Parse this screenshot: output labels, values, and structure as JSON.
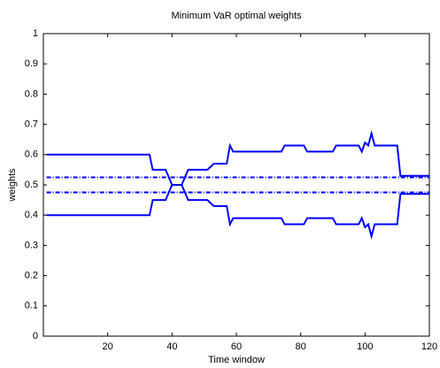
{
  "chart_data": {
    "type": "line",
    "title": "Minimum VaR optimal weights",
    "xlabel": "Time window",
    "ylabel": "weights",
    "xlim": [
      0,
      120
    ],
    "xticks": [
      20,
      40,
      60,
      80,
      100,
      120
    ],
    "ylim": [
      0,
      1
    ],
    "yticks": [
      0,
      0.1,
      0.2,
      0.3,
      0.4,
      0.5,
      0.6,
      0.7,
      0.8,
      0.9,
      1
    ],
    "series": [
      {
        "color": "#0000ff",
        "linestyle": "solid",
        "x": [
          1,
          33,
          34,
          38,
          40,
          43,
          45,
          51,
          53,
          57,
          58,
          59,
          74,
          75,
          81,
          82,
          90,
          91,
          98,
          99,
          100,
          101,
          102,
          103,
          110,
          111,
          120
        ],
        "values": [
          0.6,
          0.6,
          0.55,
          0.55,
          0.5,
          0.5,
          0.55,
          0.55,
          0.57,
          0.57,
          0.63,
          0.61,
          0.61,
          0.63,
          0.63,
          0.61,
          0.61,
          0.63,
          0.63,
          0.61,
          0.64,
          0.63,
          0.67,
          0.63,
          0.63,
          0.53,
          0.53
        ]
      },
      {
        "color": "#0000ff",
        "linestyle": "solid",
        "x": [
          1,
          33,
          34,
          38,
          40,
          43,
          45,
          51,
          53,
          57,
          58,
          59,
          74,
          75,
          81,
          82,
          90,
          91,
          98,
          99,
          100,
          101,
          102,
          103,
          110,
          111,
          120
        ],
        "values": [
          0.4,
          0.4,
          0.45,
          0.45,
          0.5,
          0.5,
          0.45,
          0.45,
          0.43,
          0.43,
          0.37,
          0.39,
          0.39,
          0.37,
          0.37,
          0.39,
          0.39,
          0.37,
          0.37,
          0.39,
          0.36,
          0.37,
          0.33,
          0.37,
          0.37,
          0.47,
          0.47
        ]
      },
      {
        "color": "#0000ff",
        "linestyle": "dashdot",
        "x": [
          1,
          120
        ],
        "values": [
          0.525,
          0.525
        ]
      },
      {
        "color": "#0000ff",
        "linestyle": "dashdot",
        "x": [
          1,
          120
        ],
        "values": [
          0.475,
          0.475
        ]
      }
    ]
  }
}
